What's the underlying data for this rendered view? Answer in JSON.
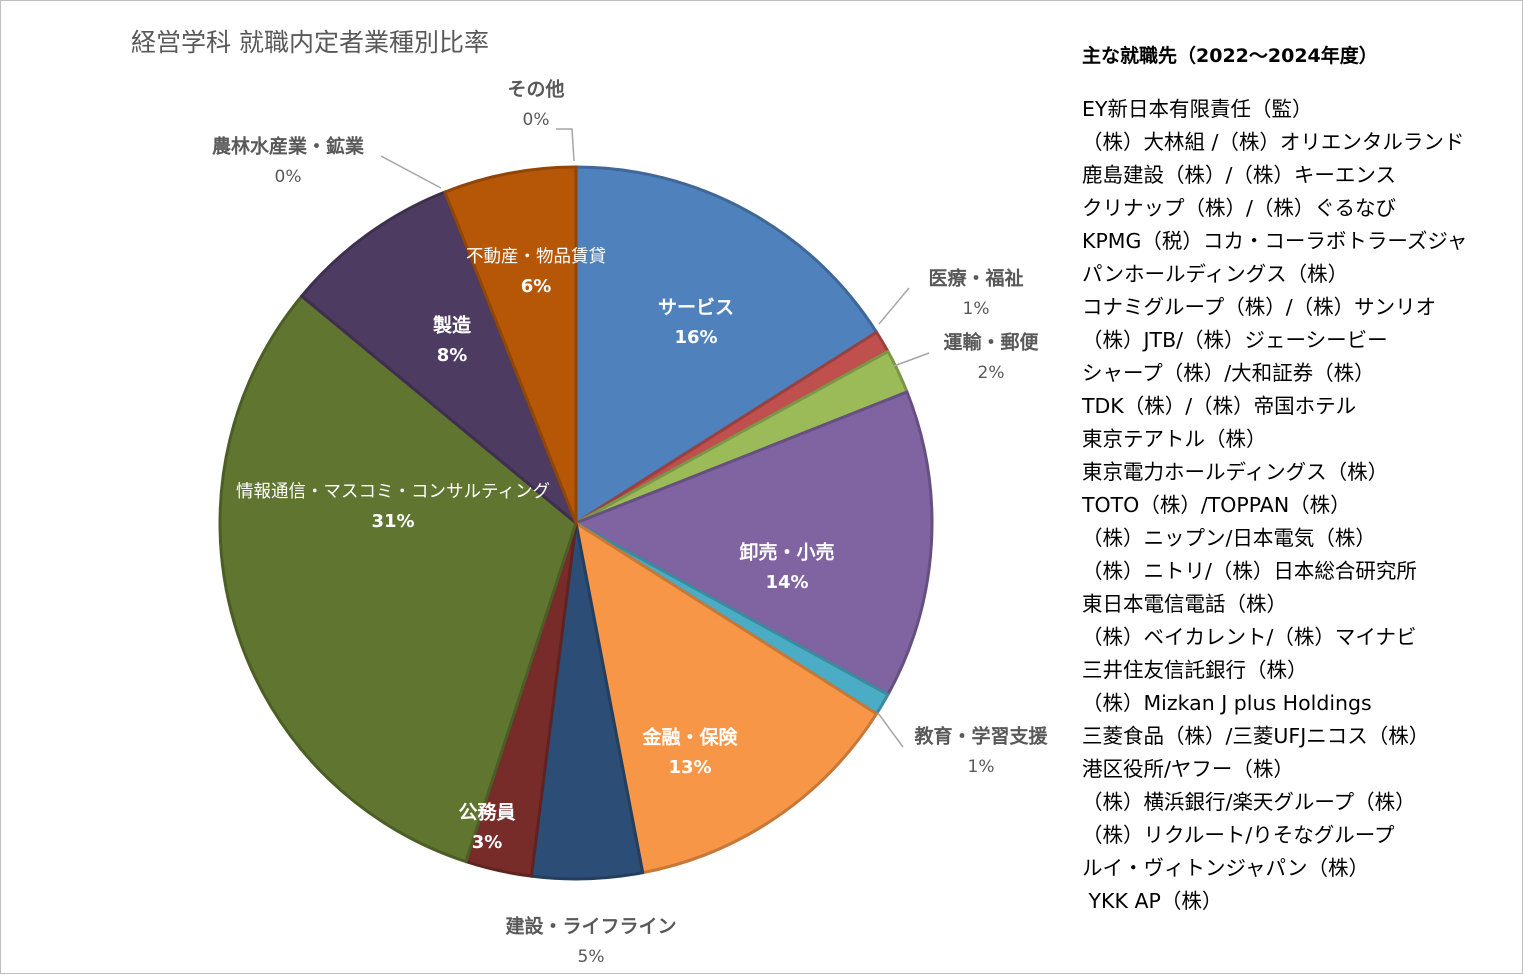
{
  "chart_data": {
    "type": "pie",
    "title": "経営学科 就職内定者業種別比率",
    "slices": [
      {
        "label": "サービス",
        "value": 16,
        "value_label": "16%",
        "color": "#4f81bd",
        "label_color": "#ffffff"
      },
      {
        "label": "医療・福祉",
        "value": 1,
        "value_label": "1%",
        "color": "#c0504d",
        "label_color": "#595959"
      },
      {
        "label": "運輸・郵便",
        "value": 2,
        "value_label": "2%",
        "color": "#9bbb59",
        "label_color": "#595959"
      },
      {
        "label": "卸売・小売",
        "value": 14,
        "value_label": "14%",
        "color": "#8064a2",
        "label_color": "#ffffff"
      },
      {
        "label": "教育・学習支援",
        "value": 1,
        "value_label": "1%",
        "color": "#4bacc6",
        "label_color": "#595959"
      },
      {
        "label": "金融・保険",
        "value": 13,
        "value_label": "13%",
        "color": "#f79646",
        "label_color": "#ffffff"
      },
      {
        "label": "建設・ライフライン",
        "value": 5,
        "value_label": "5%",
        "color": "#2c4d75",
        "label_color": "#595959"
      },
      {
        "label": "公務員",
        "value": 3,
        "value_label": "3%",
        "color": "#772c2a",
        "label_color": "#ffffff"
      },
      {
        "label": "情報通信・マスコミ・コンサルティング",
        "value": 31,
        "value_label": "31%",
        "color": "#5f7530",
        "label_color": "#ffffff"
      },
      {
        "label": "製造",
        "value": 8,
        "value_label": "8%",
        "color": "#4d3b62",
        "label_color": "#ffffff"
      },
      {
        "label": "農林水産業・鉱業",
        "value": 0,
        "value_label": "0%",
        "color": "#276a7c",
        "label_color": "#595959"
      },
      {
        "label": "不動産・物品賃貸",
        "value": 6,
        "value_label": "6%",
        "color": "#b65708",
        "label_color": "#ffffff"
      },
      {
        "label": "その他",
        "value": 0,
        "value_label": "0%",
        "color": "#a5a5a5",
        "label_color": "#595959"
      }
    ]
  },
  "side_panel": {
    "heading": "主な就職先（2022～2024年度）",
    "companies": [
      "EY新日本有限責任（監）",
      "（株）大林組 /（株）オリエンタルランド",
      "鹿島建設（株）/（株）キーエンス",
      "クリナップ（株）/（株）ぐるなび",
      "KPMG（税）コカ・コーラボトラーズジャ",
      "パンホールディングス（株）",
      "コナミグループ（株）/（株）サンリオ",
      "（株）JTB/（株）ジェーシービー",
      "シャープ（株）/大和証券（株）",
      "TDK（株）/（株）帝国ホテル",
      "東京テアトル（株）",
      "東京電力ホールディングス（株）",
      "TOTO（株）/TOPPAN（株）",
      "（株）ニップン/日本電気（株）",
      "（株）ニトリ/（株）日本総合研究所",
      "東日本電信電話（株）",
      "（株）ベイカレント/（株）マイナビ",
      "三井住友信託銀行（株）",
      "（株）Mizkan J plus Holdings",
      "三菱食品（株）/三菱UFJニコス（株）",
      "港区役所/ヤフー（株）",
      "（株）横浜銀行/楽天グループ（株）",
      "（株）リクルート/りそなグループ",
      "ルイ・ヴィトンジャパン（株）",
      " YKK AP（株）"
    ]
  }
}
